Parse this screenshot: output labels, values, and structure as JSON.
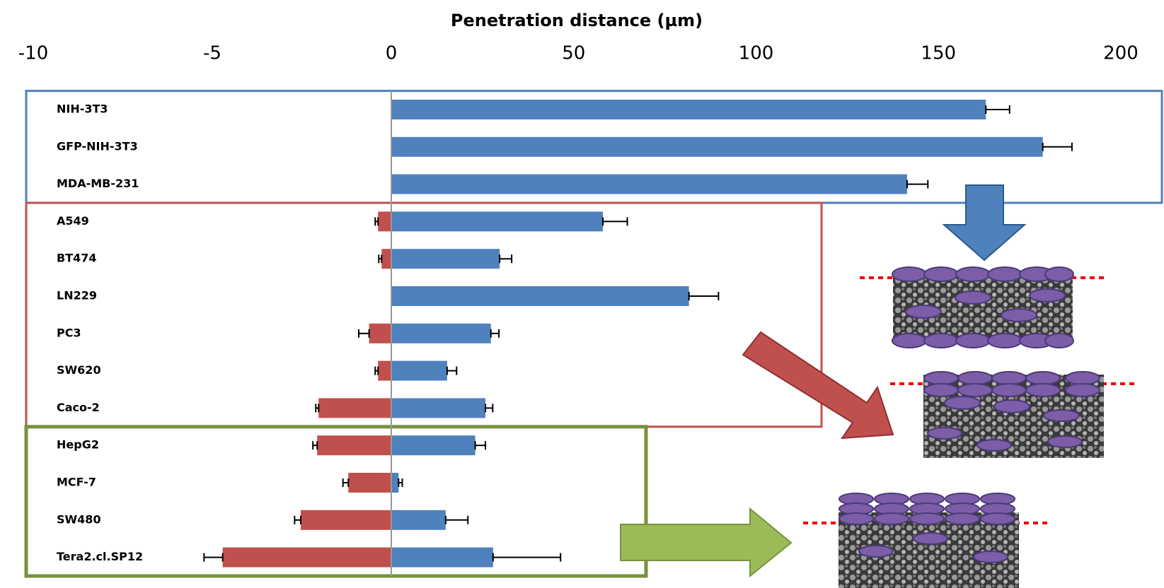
{
  "chart_data": {
    "type": "bar",
    "orientation": "horizontal",
    "title": "Penetration distance (µm)",
    "categories": [
      "NIH-3T3",
      "GFP-NIH-3T3",
      "MDA-MB-231",
      "A549",
      "BT474",
      "LN229",
      "PC3",
      "SW620",
      "Caco-2",
      "HepG2",
      "MCF-7",
      "SW480",
      "Tera2.cl.SP12"
    ],
    "xaxes": [
      {
        "xlim": [
          -10,
          0
        ],
        "xticks": [
          -10,
          -5,
          0
        ]
      },
      {
        "xlim": [
          0,
          200
        ],
        "xticks": [
          50,
          100,
          150,
          200
        ]
      }
    ],
    "series": [
      {
        "color": "#c0504d",
        "xaxis": 0,
        "values": [
          0,
          0,
          0,
          -0.37,
          -0.27,
          0,
          -0.62,
          -0.37,
          -2.03,
          -2.07,
          -1.2,
          -2.53,
          -4.71
        ],
        "errors": [
          0,
          0,
          0,
          0.08,
          0.08,
          0,
          0.29,
          0.08,
          0.08,
          0.12,
          0.15,
          0.17,
          0.52
        ]
      },
      {
        "color": "#4f81bd",
        "xaxis": 1,
        "values": [
          163,
          178.6,
          141.4,
          58,
          29.7,
          81.6,
          27.3,
          15.3,
          25.8,
          23,
          2,
          14.9,
          27.9
        ],
        "errors": [
          6.5,
          8,
          5.7,
          6.7,
          3.3,
          8.1,
          2.2,
          2.6,
          2,
          2.8,
          1,
          6.1,
          18.5
        ]
      }
    ],
    "groups": [
      {
        "color": "#4f81bd",
        "size": 3
      },
      {
        "color": "#c0504d",
        "size": 6
      },
      {
        "color": "#77933c",
        "size": 4
      }
    ]
  }
}
